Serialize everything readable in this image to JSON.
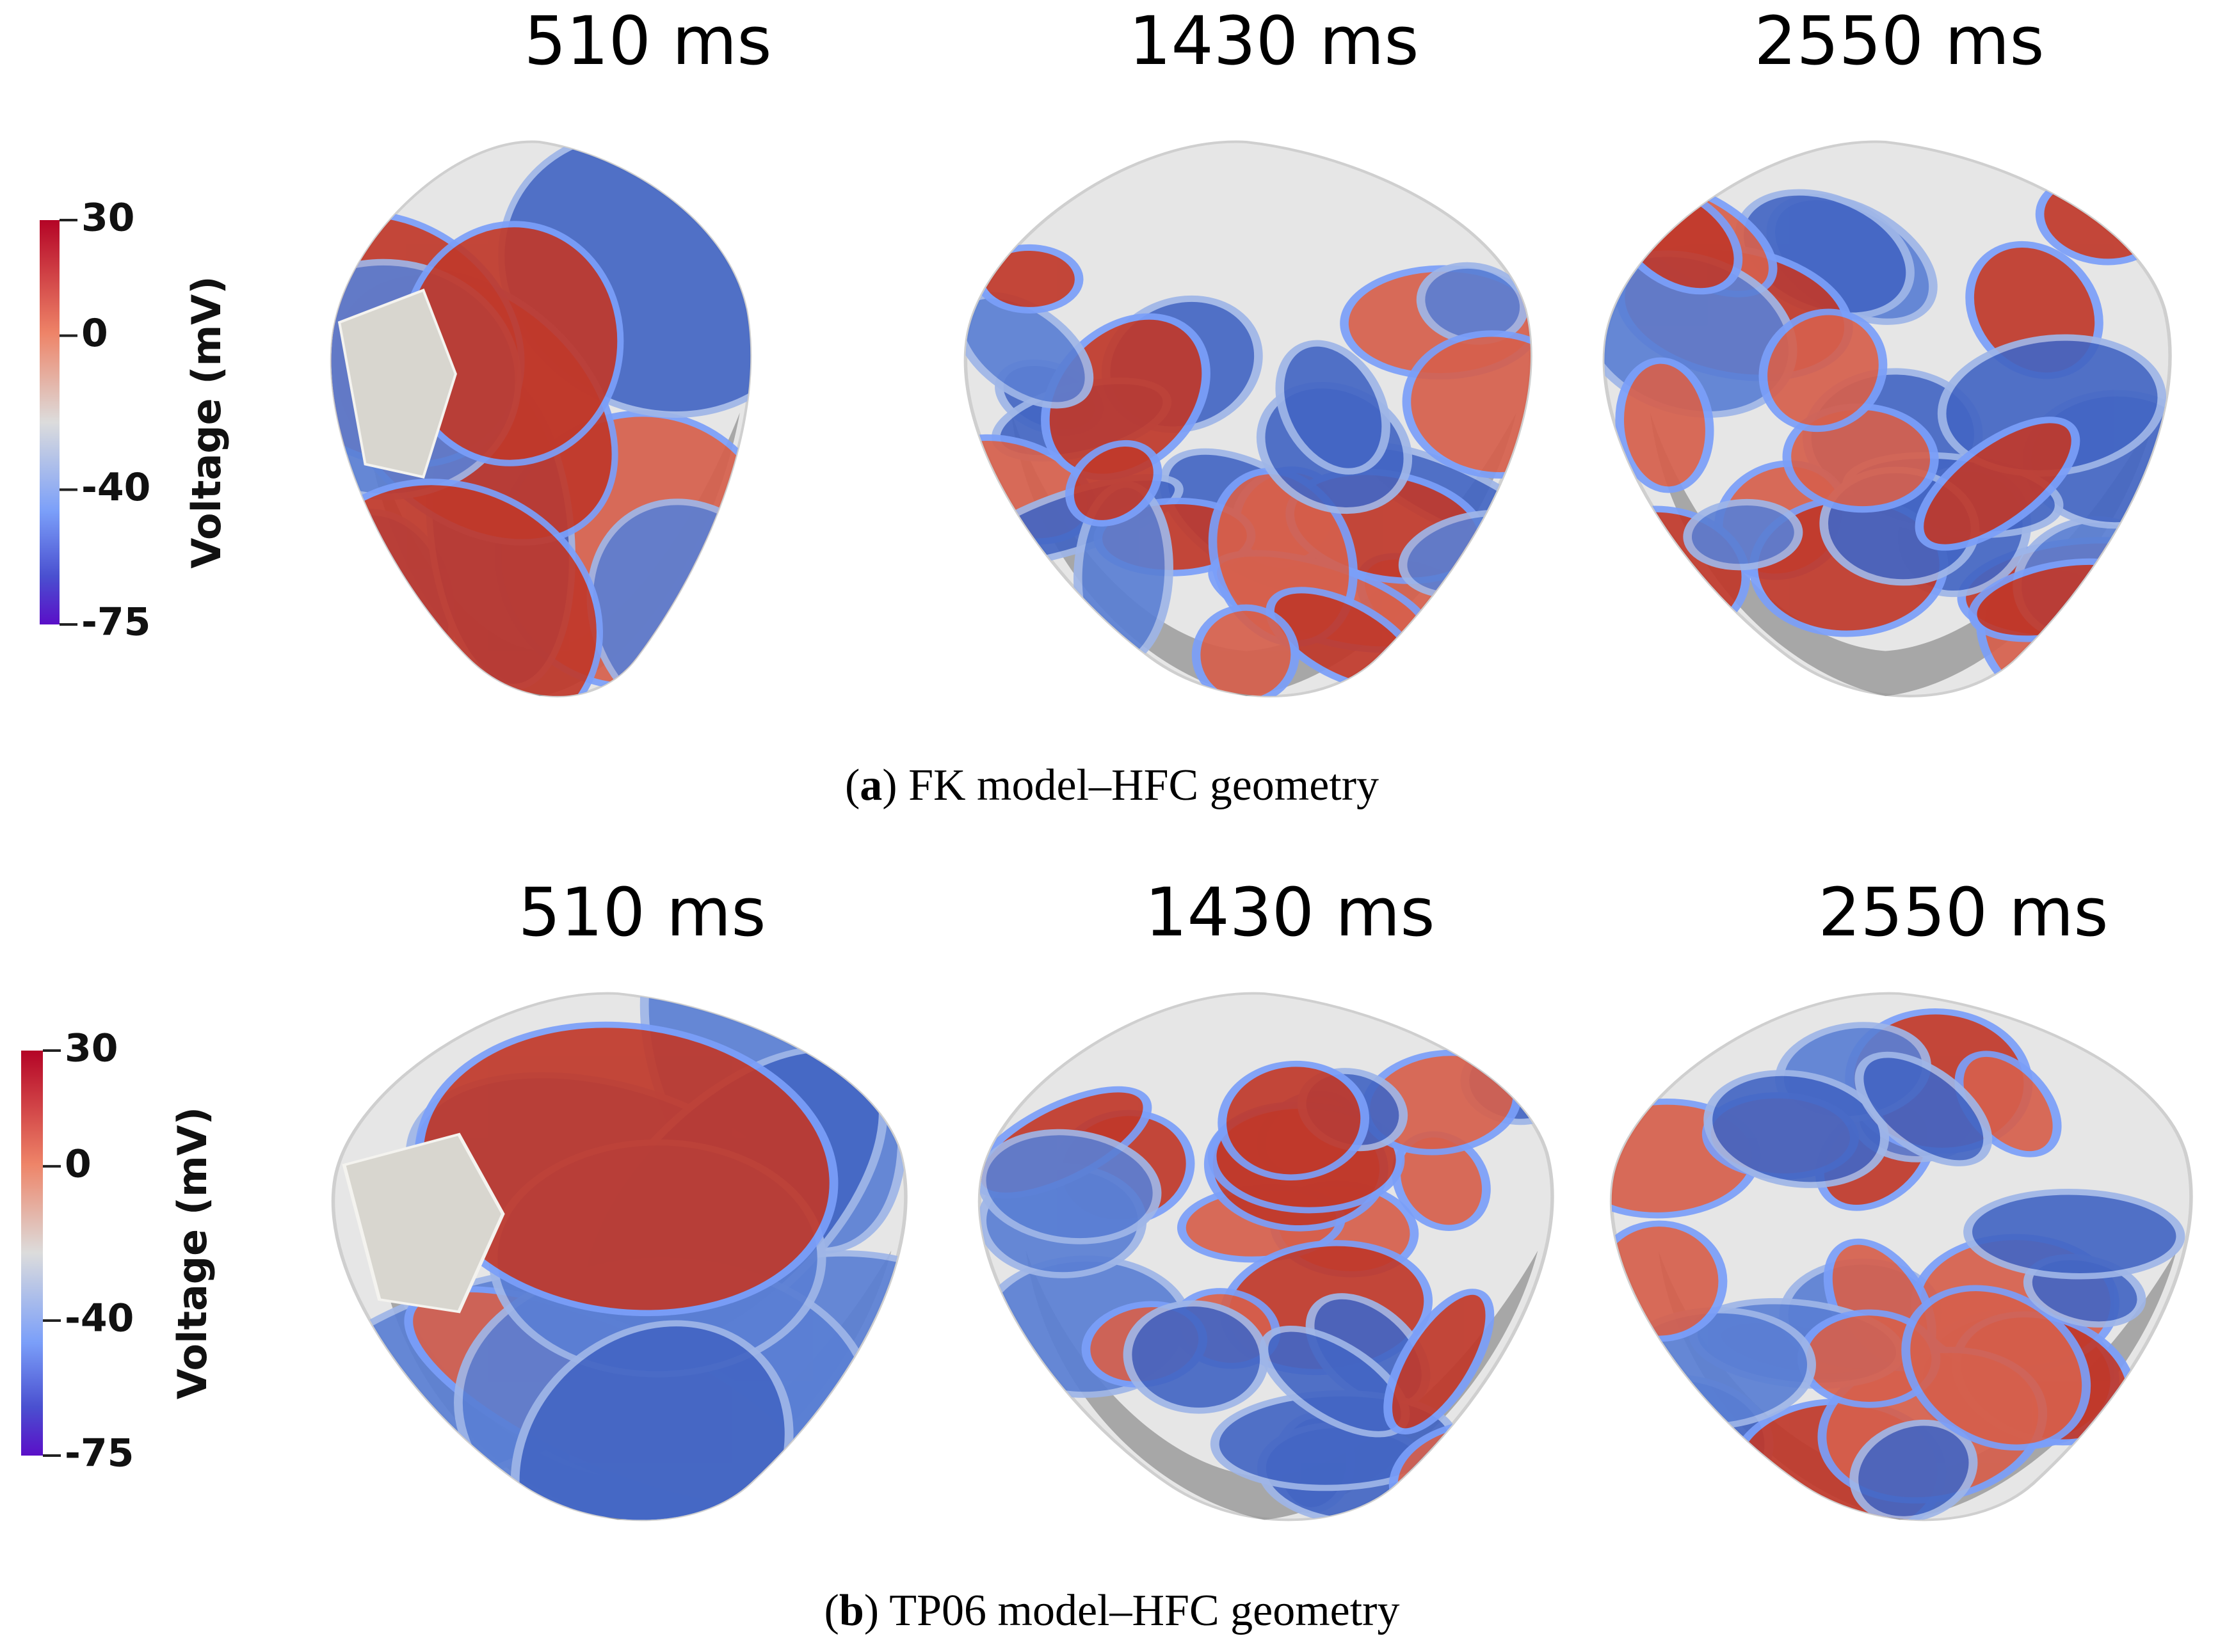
{
  "panels": [
    {
      "times": [
        "510 ms",
        "1430 ms",
        "2550 ms"
      ],
      "colorbar": {
        "ticks": [
          30,
          0,
          -40,
          -75
        ],
        "label": "Voltage (mV)"
      },
      "caption": [
        "(",
        "a",
        ") FK model–HFC geometry"
      ]
    },
    {
      "times": [
        "510 ms",
        "1430 ms",
        "2550 ms"
      ],
      "colorbar": {
        "ticks": [
          30,
          0,
          -40,
          -75
        ],
        "label": "Voltage (mV)"
      },
      "caption": [
        "(",
        "b",
        ") TP06 model–HFC geometry"
      ]
    }
  ]
}
